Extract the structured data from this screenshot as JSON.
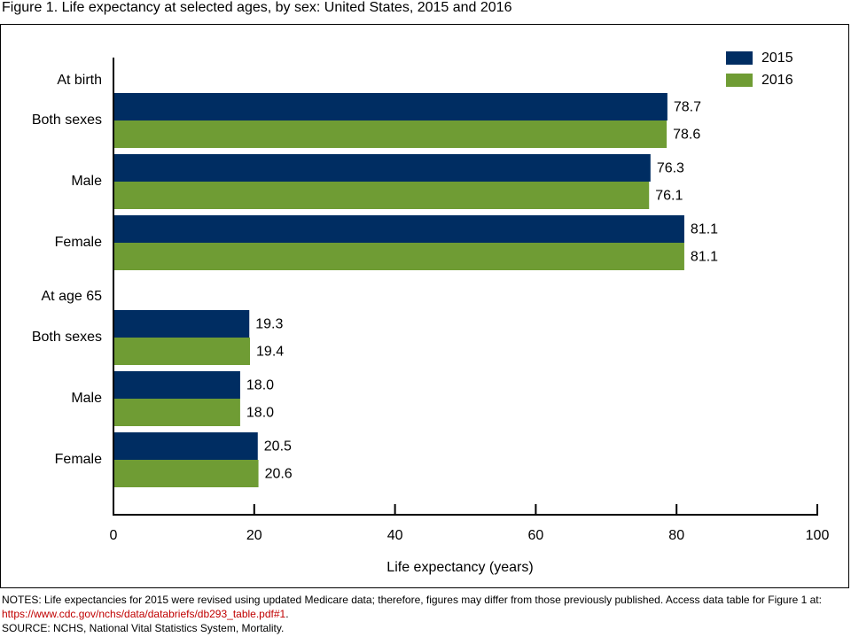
{
  "figure_title": "Figure 1. Life expectancy at selected ages, by sex: United States, 2015 and 2016",
  "colors": {
    "series_2015": "#002d62",
    "series_2016": "#6f9c34"
  },
  "chart_data": {
    "type": "bar",
    "orientation": "horizontal",
    "xlabel": "Life expectancy (years)",
    "xlim": [
      0,
      100
    ],
    "xticks": [
      0,
      20,
      40,
      60,
      80,
      100
    ],
    "legend_position": "top-right",
    "series": [
      {
        "name": "2015",
        "color": "#002d62"
      },
      {
        "name": "2016",
        "color": "#6f9c34"
      }
    ],
    "groups": [
      {
        "heading": "At birth",
        "categories": [
          {
            "label": "Both sexes",
            "values": [
              78.7,
              78.6
            ],
            "value_labels": [
              "78.7",
              "78.6"
            ]
          },
          {
            "label": "Male",
            "values": [
              76.3,
              76.1
            ],
            "value_labels": [
              "76.3",
              "76.1"
            ]
          },
          {
            "label": "Female",
            "values": [
              81.1,
              81.1
            ],
            "value_labels": [
              "81.1",
              "81.1"
            ]
          }
        ]
      },
      {
        "heading": "At age 65",
        "categories": [
          {
            "label": "Both sexes",
            "values": [
              19.3,
              19.4
            ],
            "value_labels": [
              "19.3",
              "19.4"
            ]
          },
          {
            "label": "Male",
            "values": [
              18.0,
              18.0
            ],
            "value_labels": [
              "18.0",
              "18.0"
            ]
          },
          {
            "label": "Female",
            "values": [
              20.5,
              20.6
            ],
            "value_labels": [
              "20.5",
              "20.6"
            ]
          }
        ]
      }
    ]
  },
  "notes": {
    "line1": "NOTES: Life expectancies for 2015 were revised using updated Medicare data; therefore, figures may differ from those previously published. Access data table for Figure 1 at: ",
    "link_text": "https://www.cdc.gov/nchs/data/databriefs/db293_table.pdf#1",
    "line1_end": ".",
    "source": "SOURCE: NCHS, National Vital Statistics System, Mortality."
  }
}
